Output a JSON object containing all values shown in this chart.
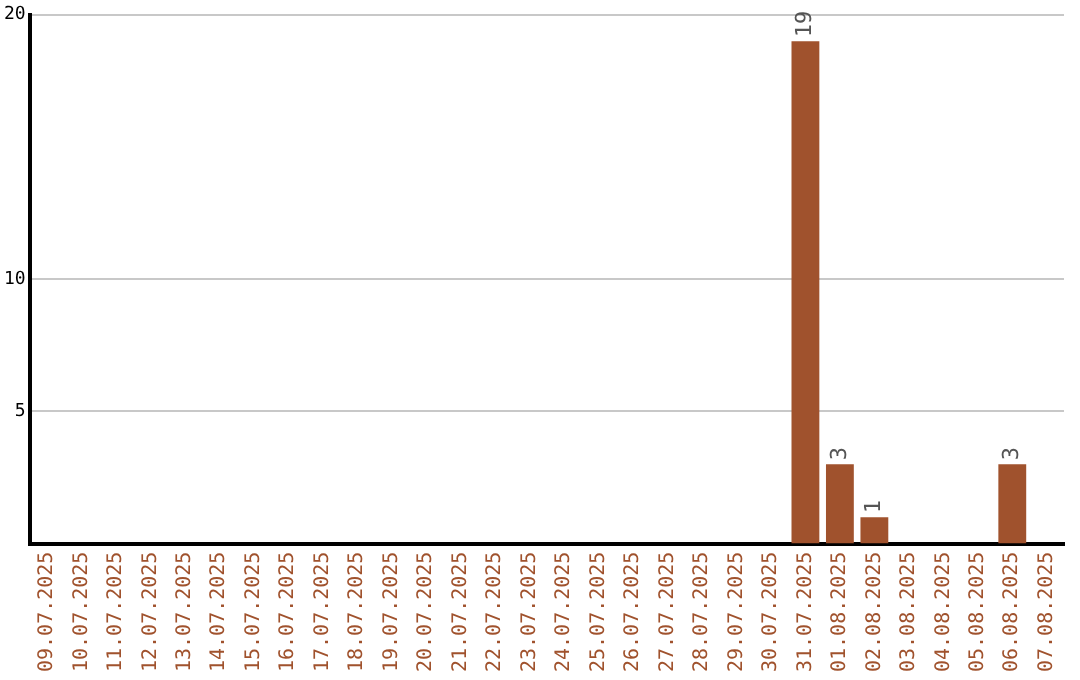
{
  "chart_data": {
    "type": "bar",
    "categories": [
      "09.07.2025",
      "10.07.2025",
      "11.07.2025",
      "12.07.2025",
      "13.07.2025",
      "14.07.2025",
      "15.07.2025",
      "16.07.2025",
      "17.07.2025",
      "18.07.2025",
      "19.07.2025",
      "20.07.2025",
      "21.07.2025",
      "22.07.2025",
      "23.07.2025",
      "24.07.2025",
      "25.07.2025",
      "26.07.2025",
      "27.07.2025",
      "28.07.2025",
      "29.07.2025",
      "30.07.2025",
      "31.07.2025",
      "01.08.2025",
      "02.08.2025",
      "03.08.2025",
      "04.08.2025",
      "05.08.2025",
      "06.08.2025",
      "07.08.2025"
    ],
    "values": [
      0,
      0,
      0,
      0,
      0,
      0,
      0,
      0,
      0,
      0,
      0,
      0,
      0,
      0,
      0,
      0,
      0,
      0,
      0,
      0,
      0,
      0,
      19,
      3,
      1,
      0,
      0,
      0,
      3,
      0
    ],
    "value_labels": [
      null,
      null,
      null,
      null,
      null,
      null,
      null,
      null,
      null,
      null,
      null,
      null,
      null,
      null,
      null,
      null,
      null,
      null,
      null,
      null,
      null,
      null,
      "19",
      "3",
      "1",
      null,
      null,
      null,
      "3",
      null
    ],
    "color": "#a0522d",
    "ylim": [
      0,
      20
    ],
    "yticks": [
      5,
      10,
      20
    ],
    "grid": "y",
    "legend": false
  }
}
